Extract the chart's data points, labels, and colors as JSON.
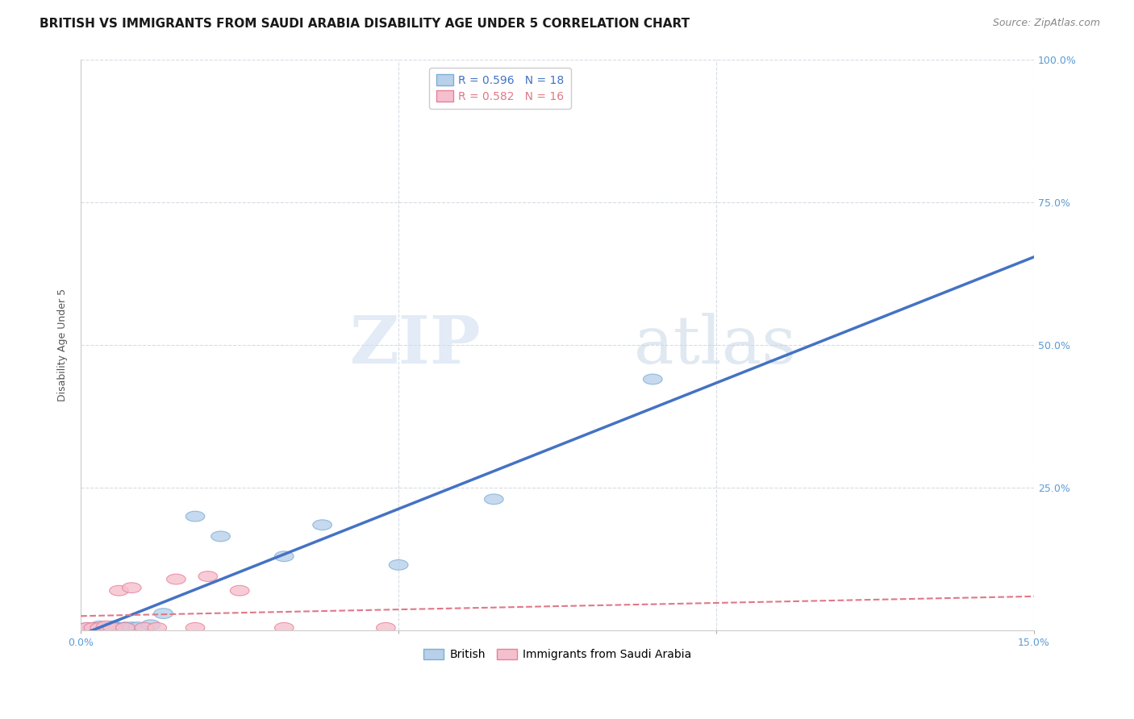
{
  "title": "BRITISH VS IMMIGRANTS FROM SAUDI ARABIA DISABILITY AGE UNDER 5 CORRELATION CHART",
  "source": "Source: ZipAtlas.com",
  "ylabel": "Disability Age Under 5",
  "watermark_zip": "ZIP",
  "watermark_atlas": "atlas",
  "x_min": 0.0,
  "x_max": 0.15,
  "y_min": 0.0,
  "y_max": 1.0,
  "x_ticks": [
    0.0,
    0.05,
    0.1,
    0.15
  ],
  "x_tick_labels": [
    "0.0%",
    "",
    "",
    "15.0%"
  ],
  "y_ticks": [
    0.0,
    0.25,
    0.5,
    0.75,
    1.0
  ],
  "y_tick_labels": [
    "",
    "25.0%",
    "50.0%",
    "75.0%",
    "100.0%"
  ],
  "british_R": "0.596",
  "british_N": "18",
  "saudi_R": "0.582",
  "saudi_N": "16",
  "british_color": "#b8d0ea",
  "british_edge_color": "#7bafd4",
  "saudi_color": "#f5c0ce",
  "saudi_edge_color": "#e8809a",
  "line_british_color": "#4472c4",
  "line_saudi_color": "#e07888",
  "british_x": [
    0.001,
    0.002,
    0.003,
    0.004,
    0.005,
    0.006,
    0.007,
    0.008,
    0.009,
    0.011,
    0.013,
    0.018,
    0.022,
    0.032,
    0.038,
    0.05,
    0.065,
    0.09
  ],
  "british_y": [
    0.005,
    0.005,
    0.008,
    0.005,
    0.008,
    0.005,
    0.006,
    0.006,
    0.006,
    0.01,
    0.03,
    0.2,
    0.165,
    0.13,
    0.185,
    0.115,
    0.23,
    0.44
  ],
  "saudi_x": [
    0.001,
    0.002,
    0.003,
    0.004,
    0.005,
    0.006,
    0.007,
    0.008,
    0.01,
    0.012,
    0.015,
    0.018,
    0.02,
    0.025,
    0.032,
    0.048
  ],
  "saudi_y": [
    0.005,
    0.005,
    0.005,
    0.008,
    0.005,
    0.07,
    0.005,
    0.075,
    0.005,
    0.005,
    0.09,
    0.005,
    0.095,
    0.07,
    0.005,
    0.005
  ],
  "legend_box_color": "#ffffff",
  "legend_border_color": "#cccccc",
  "grid_color": "#d5dce4",
  "background_color": "#ffffff",
  "title_fontsize": 11,
  "axis_label_fontsize": 9,
  "tick_fontsize": 9,
  "legend_fontsize": 10,
  "source_fontsize": 9
}
